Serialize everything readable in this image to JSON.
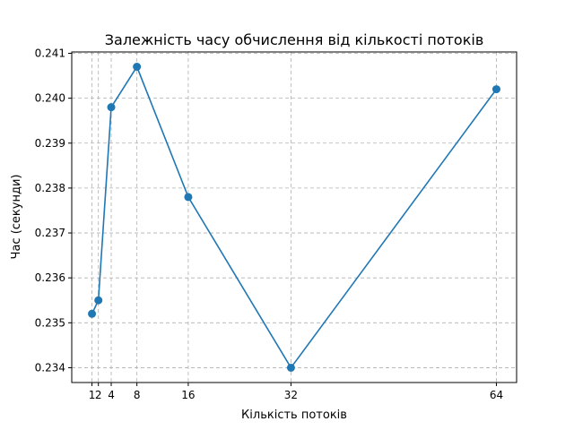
{
  "chart_data": {
    "type": "line",
    "title": "Залежність часу обчислення від кількості потоків",
    "xlabel": "Кількість потоків",
    "ylabel": "Час (секунди)",
    "x": [
      1,
      2,
      4,
      8,
      16,
      32,
      64
    ],
    "xticks": [
      1,
      2,
      4,
      8,
      16,
      32,
      64
    ],
    "xlim": [
      -2.15,
      67.15
    ],
    "ylim": [
      0.23367,
      0.24103
    ],
    "yticks": [
      0.234,
      0.235,
      0.236,
      0.237,
      0.238,
      0.239,
      0.24,
      0.241
    ],
    "ytick_labels": [
      "0.234",
      "0.235",
      "0.236",
      "0.237",
      "0.238",
      "0.239",
      "0.240",
      "0.241"
    ],
    "grid": true,
    "series": [
      {
        "values": [
          0.2352,
          0.2355,
          0.2398,
          0.2407,
          0.2378,
          0.234,
          0.2402
        ],
        "color": "#1f77b4",
        "marker": "circle"
      }
    ]
  }
}
